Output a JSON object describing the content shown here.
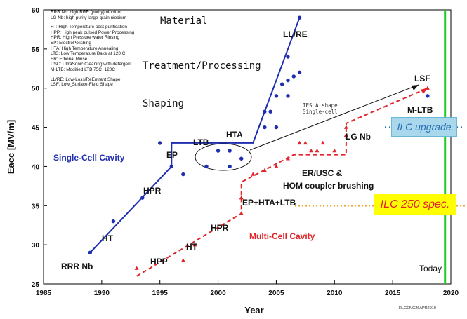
{
  "chart_data": {
    "type": "scatter",
    "xlabel": "Year",
    "ylabel": "Eacc [MV/m]",
    "xlim": [
      1985,
      2020
    ],
    "ylim": [
      25,
      60
    ],
    "x_ticks": [
      1985,
      1990,
      1995,
      2000,
      2005,
      2010,
      2015,
      2020
    ],
    "y_ticks": [
      25,
      30,
      35,
      40,
      45,
      50,
      55,
      60
    ],
    "series": [
      {
        "name": "Single-Cell Cavity",
        "color": "#1f2db0",
        "marker": "circle",
        "points": [
          [
            1989,
            29
          ],
          [
            1991,
            33
          ],
          [
            1993.5,
            36
          ],
          [
            1995,
            43
          ],
          [
            1996,
            40
          ],
          [
            1997,
            39
          ],
          [
            1999,
            40
          ],
          [
            2000,
            42
          ],
          [
            2001,
            42
          ],
          [
            2001,
            40
          ],
          [
            2002,
            41
          ],
          [
            2004,
            45
          ],
          [
            2004,
            47
          ],
          [
            2004.5,
            47
          ],
          [
            2005,
            49
          ],
          [
            2005,
            45
          ],
          [
            2005.5,
            50.5
          ],
          [
            2006,
            54
          ],
          [
            2006,
            51
          ],
          [
            2006,
            49
          ],
          [
            2006.5,
            51.5
          ],
          [
            2007,
            52
          ],
          [
            2007,
            59
          ],
          [
            2018,
            49
          ]
        ],
        "trend": [
          [
            1989,
            29
          ],
          [
            1996,
            40
          ],
          [
            1996,
            43
          ],
          [
            2003,
            43
          ],
          [
            2007,
            59
          ]
        ]
      },
      {
        "name": "Multi-Cell Cavity",
        "color": "#e0242a",
        "marker": "triangle",
        "points": [
          [
            1993,
            27
          ],
          [
            1997,
            28
          ],
          [
            1998,
            30
          ],
          [
            2002,
            34
          ],
          [
            2002,
            36
          ],
          [
            2003,
            39
          ],
          [
            2004,
            39.5
          ],
          [
            2005,
            40
          ],
          [
            2006,
            41
          ],
          [
            2007,
            43
          ],
          [
            2007.5,
            43
          ],
          [
            2008,
            42
          ],
          [
            2008.5,
            42
          ],
          [
            2009,
            43
          ],
          [
            2010,
            42
          ],
          [
            2011,
            44
          ],
          [
            2011,
            45
          ],
          [
            2018,
            50
          ]
        ],
        "trend": [
          [
            1993,
            26
          ],
          [
            2002,
            34
          ],
          [
            2002,
            38
          ],
          [
            2006.5,
            41.5
          ],
          [
            2011,
            41.5
          ],
          [
            2011,
            45.5
          ],
          [
            2018,
            50
          ]
        ]
      }
    ],
    "reference_lines": [
      {
        "label": "ILC upgrade",
        "y": 45
      },
      {
        "label": "ILC 250 spec.",
        "y": 35
      },
      {
        "label": "Today",
        "x": 2019.5
      }
    ],
    "annotations": {
      "rrr_nb": "RRR Nb",
      "ht_blue": "HT",
      "hpr_blue": "HPR",
      "ep": "EP",
      "ltb": "LTB",
      "hta": "HTA",
      "llre": "LL/RE",
      "lsf": "LSF",
      "mltb": "M-LTB",
      "single_cell": "Single-Cell Cavity",
      "multi_cell": "Multi-Cell Cavity",
      "hpp": "HPP",
      "ht_red": "HT",
      "hpr_red": "HPR",
      "ep_hta_ltb": "EP+HTA+LTB",
      "er_usc_line1": "ER/USC &",
      "er_usc_line2": "HOM coupler brushing",
      "lg_nb": "LG Nb",
      "tesla_line1": "TESLA shape",
      "tesla_line2": "Single-cell"
    },
    "stages": [
      "Material",
      "Treatment/Processing",
      "Shaping"
    ],
    "glossary": [
      "RRR Nb: high RRR (purity) niobium",
      "LG Nb: high purity large-grain niobium",
      "HT: High Temperature post-purification",
      "HPP: High peak pulsed Power Processing",
      "HPR: High Pressure water Rinsing",
      "EP: ElectroPolishing",
      "HTA: High Temperature Annealing",
      "LTB: Low Temperature Bake at 120 C",
      "ER: Ethonal Rinse",
      "USC: UltraSonic Cleaning with detergent",
      "M-LTB: Modified LTB 75C+120C",
      "LL/RE: Low-Loss/ReEntrant Shape",
      "LSF: Low_Surface-Field Shape"
    ]
  },
  "doc_id": "RLGENG26APR2019"
}
